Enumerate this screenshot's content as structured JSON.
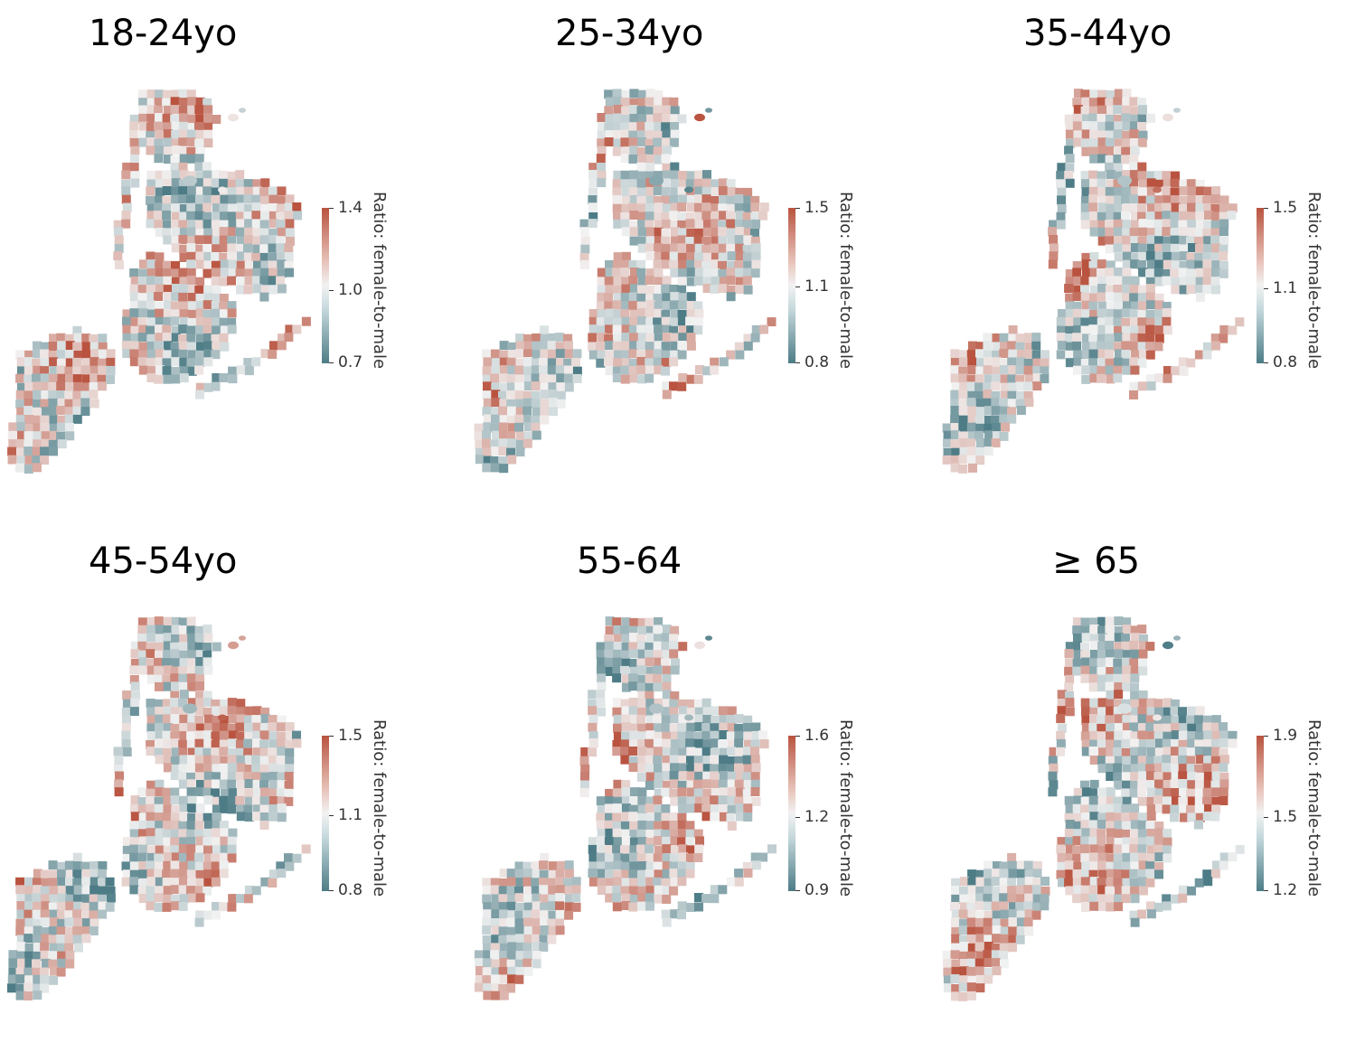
{
  "colors": {
    "low": "#4d7c86",
    "mid": "#f2f2f2",
    "high": "#b9533f"
  },
  "panels": [
    {
      "title": "18-24yo",
      "colorbar": {
        "label": "Ratio: female-to-male",
        "ticks": [
          "1.4",
          "1.0",
          "0.7"
        ],
        "range": [
          0.7,
          1.4
        ]
      },
      "seed": 11
    },
    {
      "title": "25-34yo",
      "colorbar": {
        "label": "Ratio: female-to-male",
        "ticks": [
          "1.5",
          "1.1",
          "0.8"
        ],
        "range": [
          0.8,
          1.5
        ]
      },
      "seed": 23
    },
    {
      "title": "35-44yo",
      "colorbar": {
        "label": "Ratio: female-to-male",
        "ticks": [
          "1.5",
          "1.1",
          "0.8"
        ],
        "range": [
          0.8,
          1.5
        ]
      },
      "seed": 37
    },
    {
      "title": "45-54yo",
      "colorbar": {
        "label": "Ratio: female-to-male",
        "ticks": [
          "1.5",
          "1.1",
          "0.8"
        ],
        "range": [
          0.8,
          1.5
        ]
      },
      "seed": 41
    },
    {
      "title": "55-64",
      "colorbar": {
        "label": "Ratio: female-to-male",
        "ticks": [
          "1.6",
          "1.2",
          "0.9"
        ],
        "range": [
          0.9,
          1.6
        ]
      },
      "seed": 53
    },
    {
      "title": "≥ 65",
      "colorbar": {
        "label": "Ratio: female-to-male",
        "ticks": [
          "1.9",
          "1.5",
          "1.2"
        ],
        "range": [
          1.2,
          1.9
        ]
      },
      "seed": 67
    }
  ]
}
